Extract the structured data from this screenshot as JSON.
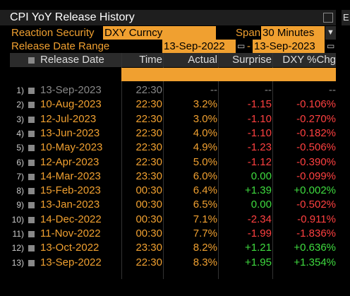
{
  "title": "CPI YoY Release History",
  "window_icon": "menu-icon",
  "side_tab": "E",
  "reaction_security": {
    "label": "Reaction Security",
    "value": "DXY Curncy"
  },
  "span": {
    "label": "Span",
    "value": "30 Minutes"
  },
  "date_range": {
    "label": "Release Date Range",
    "from": "13-Sep-2022",
    "to": "13-Sep-2023"
  },
  "columns": {
    "release_date": "Release Date",
    "time": "Time",
    "actual": "Actual",
    "surprise": "Surprise",
    "dxy": "DXY %Chg"
  },
  "rows": [
    {
      "num": "1)",
      "date": "13-Sep-2023",
      "time": "22:30",
      "actual": "--",
      "surprise": "--",
      "dxy": "--"
    },
    {
      "num": "2)",
      "date": "10-Aug-2023",
      "time": "22:30",
      "actual": "3.2%",
      "surprise": "-1.15",
      "dxy": "-0.106%"
    },
    {
      "num": "3)",
      "date": "12-Jul-2023",
      "time": "22:30",
      "actual": "3.0%",
      "surprise": "-1.10",
      "dxy": "-0.270%"
    },
    {
      "num": "4)",
      "date": "13-Jun-2023",
      "time": "22:30",
      "actual": "4.0%",
      "surprise": "-1.10",
      "dxy": "-0.182%"
    },
    {
      "num": "5)",
      "date": "10-May-2023",
      "time": "22:30",
      "actual": "4.9%",
      "surprise": "-1.23",
      "dxy": "-0.506%"
    },
    {
      "num": "6)",
      "date": "12-Apr-2023",
      "time": "22:30",
      "actual": "5.0%",
      "surprise": "-1.12",
      "dxy": "-0.390%"
    },
    {
      "num": "7)",
      "date": "14-Mar-2023",
      "time": "23:30",
      "actual": "6.0%",
      "surprise": "0.00",
      "dxy": "-0.099%"
    },
    {
      "num": "8)",
      "date": "15-Feb-2023",
      "time": "00:30",
      "actual": "6.4%",
      "surprise": "+1.39",
      "dxy": "+0.002%"
    },
    {
      "num": "9)",
      "date": "13-Jan-2023",
      "time": "00:30",
      "actual": "6.5%",
      "surprise": "0.00",
      "dxy": "-0.502%"
    },
    {
      "num": "10)",
      "date": "14-Dec-2022",
      "time": "00:30",
      "actual": "7.1%",
      "surprise": "-2.34",
      "dxy": "-0.911%"
    },
    {
      "num": "11)",
      "date": "11-Nov-2022",
      "time": "00:30",
      "actual": "7.7%",
      "surprise": "-1.99",
      "dxy": "-1.836%"
    },
    {
      "num": "12)",
      "date": "13-Oct-2022",
      "time": "23:30",
      "actual": "8.2%",
      "surprise": "+1.21",
      "dxy": "+0.636%"
    },
    {
      "num": "13)",
      "date": "13-Sep-2022",
      "time": "22:30",
      "actual": "8.3%",
      "surprise": "+1.95",
      "dxy": "+1.354%"
    }
  ],
  "colors": {
    "amber": "#f0a030",
    "red": "#ff4040",
    "green": "#3fdc3f",
    "grey": "#888888"
  }
}
